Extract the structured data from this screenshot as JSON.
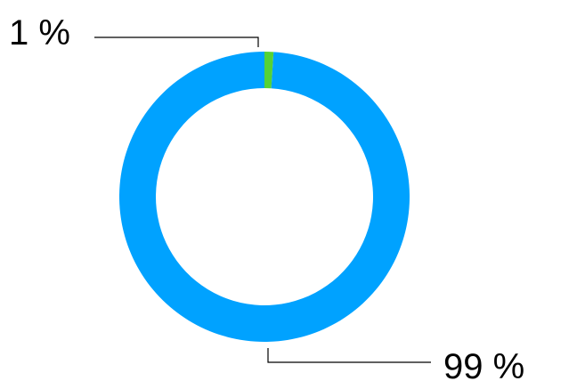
{
  "chart_data": {
    "type": "pie",
    "style": "donut",
    "categories": [
      "",
      ""
    ],
    "values": [
      1,
      99
    ],
    "labels": [
      "1 %",
      "99 %"
    ],
    "colors": [
      "#55d235",
      "#00a2ff"
    ],
    "start_angle": "top",
    "direction": "clockwise",
    "title": "",
    "legend": "none"
  }
}
